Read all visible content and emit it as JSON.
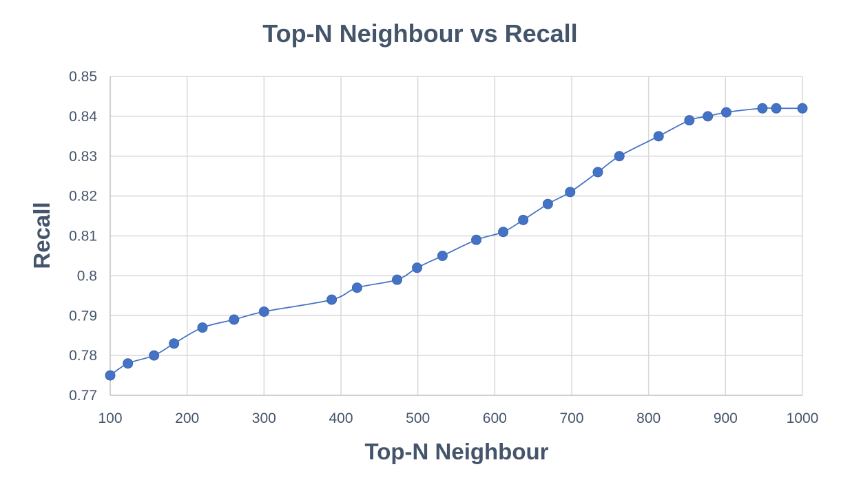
{
  "chart_data": {
    "type": "scatter",
    "title": "Top-N Neighbour vs Recall",
    "xlabel": "Top-N Neighbour",
    "ylabel": "Recall",
    "xlim": [
      100,
      1000
    ],
    "ylim": [
      0.77,
      0.85
    ],
    "xticks": [
      100,
      200,
      300,
      400,
      500,
      600,
      700,
      800,
      900,
      1000
    ],
    "xtick_labels": [
      "100",
      "200",
      "300",
      "400",
      "500",
      "600",
      "700",
      "800",
      "900",
      "1000"
    ],
    "yticks": [
      0.77,
      0.78,
      0.79,
      0.8,
      0.81,
      0.82,
      0.83,
      0.84,
      0.85
    ],
    "ytick_labels": [
      "0.77",
      "0.78",
      "0.79",
      "0.8",
      "0.81",
      "0.82",
      "0.83",
      "0.84",
      "0.85"
    ],
    "grid": true,
    "legend": "none",
    "line": "smooth",
    "color": "#4472c4",
    "series": [
      {
        "x": [
          100,
          123,
          157,
          183,
          220,
          261,
          300,
          388,
          421,
          473,
          499,
          532,
          576,
          611,
          637,
          669,
          698,
          734,
          762,
          813,
          853,
          877,
          901,
          948,
          966,
          1000
        ],
        "y": [
          0.775,
          0.778,
          0.78,
          0.783,
          0.787,
          0.789,
          0.791,
          0.794,
          0.797,
          0.799,
          0.802,
          0.805,
          0.809,
          0.811,
          0.814,
          0.818,
          0.821,
          0.826,
          0.83,
          0.835,
          0.839,
          0.84,
          0.841,
          0.842,
          0.842,
          0.842
        ]
      }
    ]
  }
}
